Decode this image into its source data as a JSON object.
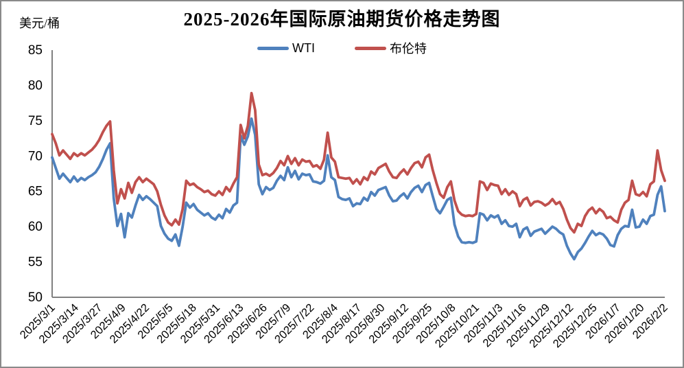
{
  "window": {
    "background": "#ffffff",
    "border_color": "#8a8a8a"
  },
  "chart_data": {
    "type": "line",
    "title": "2025-2026年国际原油期货价格走势图",
    "ylabel": "美元/桶",
    "xlabel": "",
    "ylim": [
      50,
      85
    ],
    "y_ticks": [
      50,
      55,
      60,
      65,
      70,
      75,
      80,
      85
    ],
    "grid": false,
    "legend_position": "top-center",
    "axis_color": "#808080",
    "x_range": [
      "2025/3/1",
      "2026/2/2"
    ],
    "x_label_interval_days": 13,
    "sample_interval_days": 2,
    "x_labels": [
      "2025/3/1",
      "2025/3/14",
      "2025/3/27",
      "2025/4/9",
      "2025/4/22",
      "2025/5/5",
      "2025/5/18",
      "2025/5/31",
      "2025/6/13",
      "2025/6/26",
      "2025/7/9",
      "2025/7/22",
      "2025/8/4",
      "2025/8/17",
      "2025/8/30",
      "2025/9/12",
      "2025/9/25",
      "2025/10/8",
      "2025/10/21",
      "2025/11/3",
      "2025/11/16",
      "2025/11/29",
      "2025/12/12",
      "2025/12/25",
      "2026/1/7",
      "2026/1/20",
      "2026/2/2"
    ],
    "series": [
      {
        "name": "WTI",
        "color": "#4F81BD",
        "values": [
          69.8,
          68.3,
          66.8,
          67.5,
          66.9,
          66.3,
          67.1,
          66.4,
          66.9,
          66.6,
          67.0,
          67.3,
          67.7,
          68.5,
          69.6,
          70.9,
          71.8,
          64.0,
          60.1,
          61.8,
          58.5,
          61.9,
          61.3,
          63.0,
          64.5,
          63.8,
          64.3,
          63.9,
          63.4,
          62.9,
          60.1,
          59.0,
          58.3,
          58.0,
          58.9,
          57.3,
          60.0,
          63.4,
          62.7,
          63.2,
          62.4,
          62.0,
          61.6,
          61.9,
          61.3,
          61.0,
          61.7,
          61.2,
          62.5,
          62.0,
          63.0,
          63.4,
          72.9,
          71.6,
          72.8,
          75.3,
          73.0,
          66.0,
          64.6,
          65.6,
          65.2,
          65.5,
          66.5,
          67.2,
          66.6,
          68.4,
          67.0,
          67.9,
          66.7,
          67.5,
          67.3,
          67.4,
          66.4,
          66.3,
          66.1,
          66.5,
          70.1,
          67.0,
          66.6,
          64.2,
          63.9,
          63.8,
          64.0,
          62.9,
          63.3,
          63.2,
          64.1,
          63.7,
          64.9,
          64.4,
          65.2,
          65.4,
          65.6,
          64.4,
          63.6,
          63.7,
          64.3,
          64.7,
          64.0,
          64.9,
          65.5,
          65.8,
          64.9,
          65.9,
          66.2,
          64.3,
          62.5,
          61.9,
          62.8,
          63.8,
          64.1,
          60.3,
          58.6,
          57.8,
          57.7,
          57.8,
          57.7,
          57.9,
          61.9,
          61.7,
          60.9,
          61.6,
          61.3,
          61.6,
          60.4,
          60.9,
          60.1,
          60.0,
          60.4,
          58.5,
          59.6,
          59.9,
          58.7,
          59.3,
          59.5,
          59.7,
          59.0,
          59.5,
          60.0,
          59.7,
          59.2,
          58.9,
          57.3,
          56.2,
          55.4,
          56.4,
          56.9,
          57.7,
          58.6,
          59.4,
          58.8,
          59.1,
          58.9,
          58.3,
          57.4,
          57.2,
          58.8,
          59.7,
          60.1,
          60.0,
          62.4,
          59.9,
          60.0,
          61.0,
          60.4,
          61.5,
          61.7,
          64.5,
          65.7,
          62.2
        ]
      },
      {
        "name": "布伦特",
        "color": "#C0504D",
        "values": [
          73.1,
          71.8,
          70.1,
          70.8,
          70.2,
          69.6,
          70.4,
          70.0,
          70.4,
          70.1,
          70.5,
          70.9,
          71.5,
          72.3,
          73.4,
          74.3,
          74.9,
          68.0,
          63.3,
          65.3,
          64.0,
          66.2,
          64.8,
          66.3,
          67.0,
          66.3,
          66.8,
          66.4,
          66.0,
          65.0,
          63.1,
          61.6,
          60.6,
          60.2,
          61.0,
          60.3,
          62.5,
          66.5,
          65.9,
          66.1,
          65.6,
          65.3,
          64.9,
          65.1,
          64.6,
          64.4,
          65.0,
          64.5,
          65.6,
          65.0,
          66.1,
          67.0,
          74.4,
          72.5,
          74.3,
          78.9,
          76.5,
          68.8,
          67.3,
          67.5,
          67.2,
          67.6,
          68.3,
          69.3,
          68.7,
          70.0,
          68.9,
          69.7,
          68.7,
          69.5,
          69.2,
          69.3,
          68.5,
          68.7,
          68.2,
          69.5,
          73.3,
          69.8,
          69.2,
          67.0,
          66.9,
          66.8,
          66.9,
          66.1,
          66.7,
          66.0,
          67.0,
          66.6,
          67.8,
          67.4,
          68.3,
          68.6,
          68.9,
          67.8,
          67.0,
          66.9,
          67.6,
          68.1,
          67.4,
          68.3,
          69.0,
          69.2,
          68.4,
          69.8,
          70.2,
          68.0,
          66.2,
          64.6,
          64.1,
          65.6,
          66.4,
          63.7,
          62.2,
          61.7,
          61.5,
          61.6,
          61.5,
          61.8,
          66.4,
          66.2,
          65.2,
          66.1,
          65.9,
          65.8,
          64.6,
          65.3,
          64.5,
          65.0,
          64.6,
          62.9,
          63.8,
          64.1,
          63.0,
          63.5,
          63.6,
          63.4,
          63.0,
          63.3,
          63.9,
          63.2,
          63.5,
          62.5,
          61.0,
          59.8,
          59.2,
          60.4,
          60.1,
          61.5,
          62.3,
          62.7,
          61.9,
          62.5,
          62.1,
          61.2,
          61.4,
          60.9,
          60.6,
          62.4,
          63.4,
          63.8,
          66.5,
          64.6,
          64.4,
          64.9,
          64.3,
          66.0,
          66.4,
          70.8,
          68.0,
          66.5
        ]
      }
    ]
  }
}
